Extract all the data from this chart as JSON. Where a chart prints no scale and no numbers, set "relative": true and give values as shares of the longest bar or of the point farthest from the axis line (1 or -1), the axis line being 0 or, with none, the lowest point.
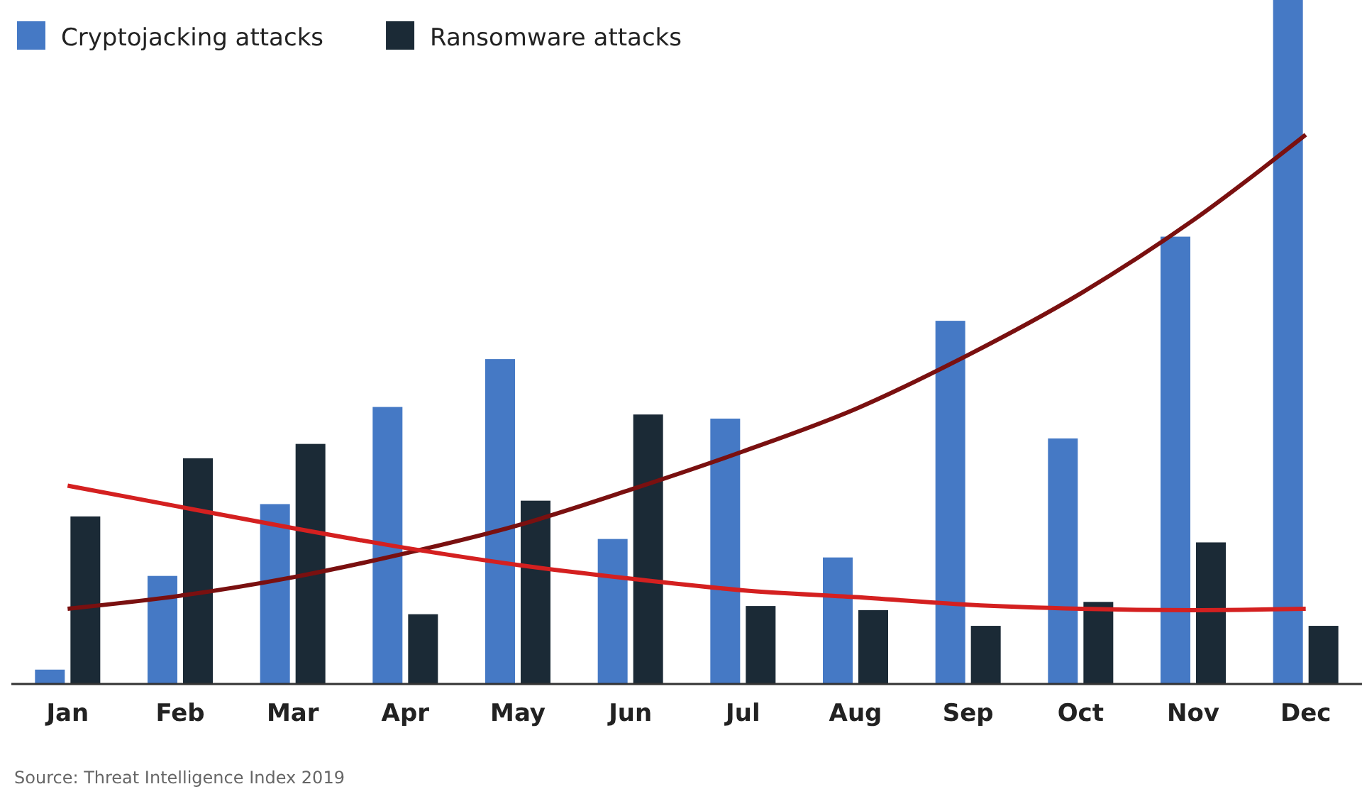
{
  "chart_data": {
    "type": "bar",
    "relative": true,
    "legend": "top left",
    "categories": [
      "Jan",
      "Feb",
      "Mar",
      "Apr",
      "May",
      "Jun",
      "Jul",
      "Aug",
      "Sep",
      "Oct",
      "Nov",
      "Dec"
    ],
    "series": [
      {
        "name": "Cryptojacking attacks",
        "color": "#4579c5",
        "values": [
          0.021,
          0.158,
          0.263,
          0.405,
          0.475,
          0.212,
          0.388,
          0.185,
          0.531,
          0.359,
          0.654,
          1
        ]
      },
      {
        "name": "Ransomware attacks",
        "color": "#1b2a36",
        "values": [
          0.245,
          0.33,
          0.351,
          0.102,
          0.268,
          0.394,
          0.114,
          0.108,
          0.085,
          0.12,
          0.207,
          0.085
        ]
      },
      {
        "type": "line",
        "color": "#7a1010",
        "values": [
          0.11,
          0.129,
          0.156,
          0.191,
          0.232,
          0.284,
          0.34,
          0.402,
          0.481,
          0.571,
          0.678,
          0.803
        ]
      },
      {
        "type": "line",
        "color": "#d42020",
        "values": [
          0.29,
          0.259,
          0.228,
          0.199,
          0.174,
          0.154,
          0.137,
          0.127,
          0.116,
          0.11,
          0.108,
          0.11
        ]
      }
    ],
    "annotations": [
      "Source: Threat Intelligence Index 2019"
    ]
  }
}
